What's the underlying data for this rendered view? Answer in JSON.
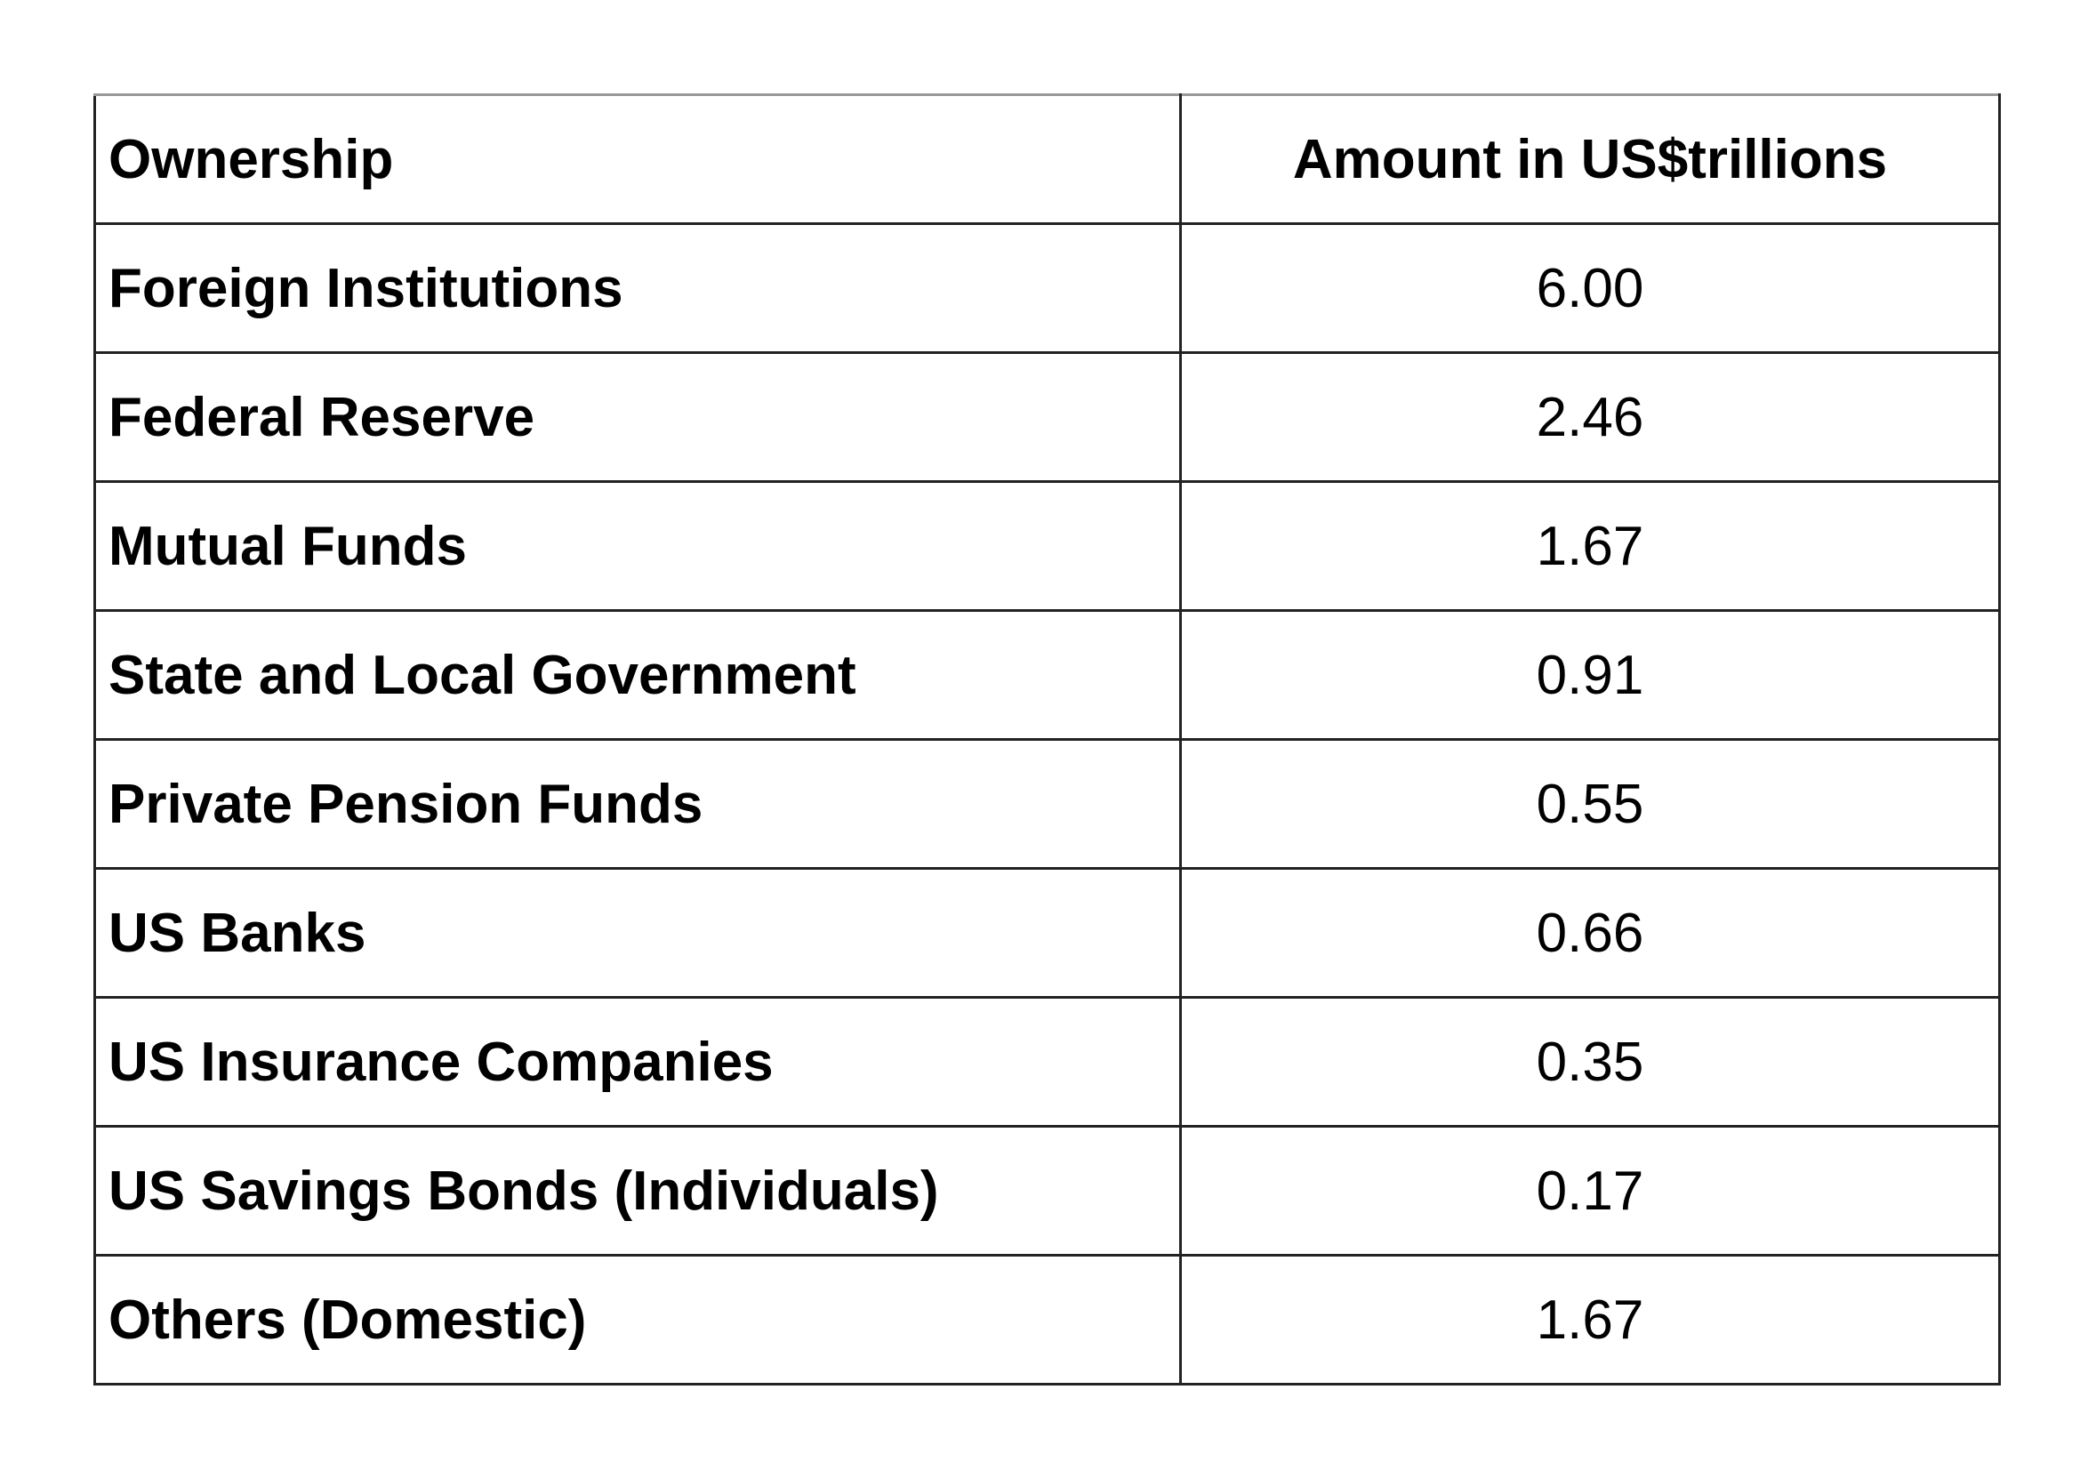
{
  "table": {
    "header": [
      "Ownership",
      "Amount in US$trillions"
    ],
    "rows": [
      [
        "Foreign Institutions",
        "6.00"
      ],
      [
        "Federal Reserve",
        "2.46"
      ],
      [
        "Mutual Funds",
        "1.67"
      ],
      [
        "State and Local Government",
        "0.91"
      ],
      [
        "Private Pension Funds",
        "0.55"
      ],
      [
        "US Banks",
        "0.66"
      ],
      [
        "US Insurance Companies",
        "0.35"
      ],
      [
        "US Savings Bonds (Individuals)",
        "0.17"
      ],
      [
        "Others (Domestic)",
        "1.67"
      ]
    ]
  }
}
